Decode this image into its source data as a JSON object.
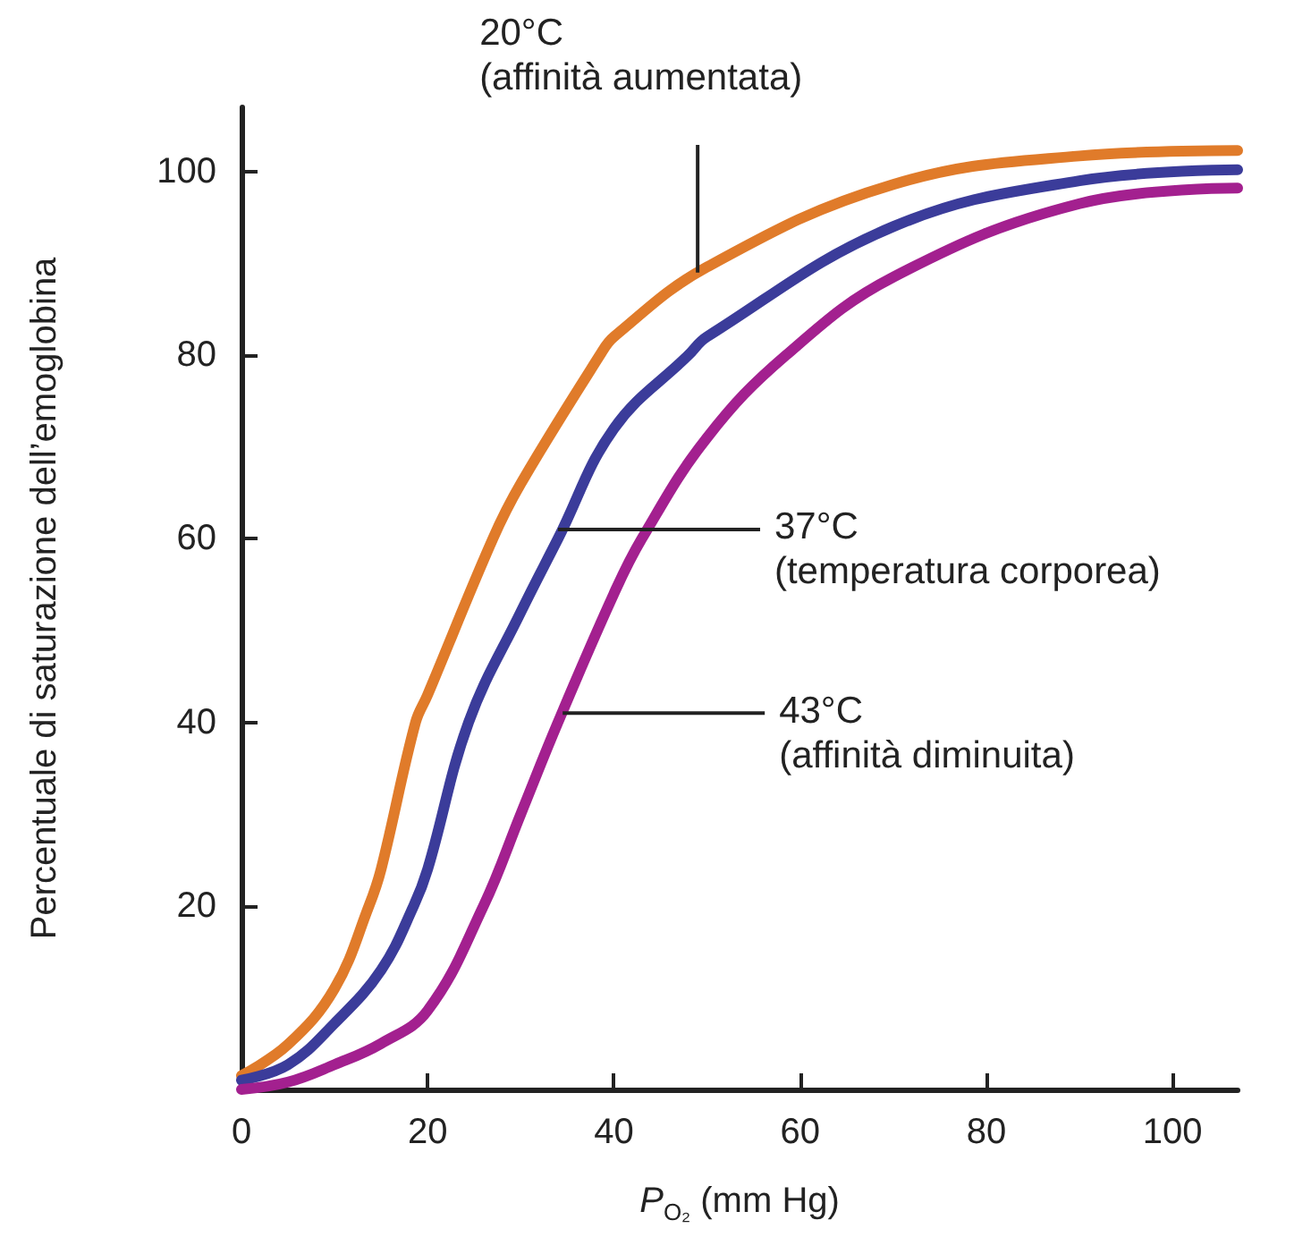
{
  "chart_data": {
    "type": "line",
    "xlabel": "P$_{O₂}$ (mm Hg)",
    "ylabel": "Percentuale di saturazione dell’emoglobina",
    "xlim": [
      0,
      107
    ],
    "xticks": [
      0,
      20,
      40,
      60,
      80,
      100
    ],
    "ylim": [
      0,
      107
    ],
    "yticks": [
      20,
      40,
      60,
      80,
      100
    ],
    "grid": false,
    "legend": false,
    "marker": "none",
    "line_style": "solid",
    "series": [
      {
        "color": "#e07b2a",
        "x": [
          0,
          5,
          10,
          13.7,
          15,
          18.7,
          20,
          27,
          30,
          38.5,
          40,
          50,
          70,
          90,
          107
        ],
        "values": [
          1.5,
          4.9,
          11,
          20,
          24,
          40,
          43,
          60,
          66,
          80,
          82,
          89.6,
          98.6,
          101.7,
          102.3
        ]
      },
      {
        "color": "#3b3c9a",
        "x": [
          0,
          5,
          10,
          15,
          18.5,
          20,
          24.4,
          30,
          34,
          40,
          48,
          50,
          70,
          90,
          107
        ],
        "values": [
          1,
          2.7,
          7.2,
          13,
          20,
          24,
          40,
          52,
          60,
          72,
          80,
          82,
          94,
          99,
          100.2
        ]
      },
      {
        "color": "#a3208f",
        "x": [
          0,
          5,
          10,
          15,
          20,
          26,
          30,
          34,
          40,
          43,
          50,
          58.5,
          70,
          90,
          107
        ],
        "values": [
          0,
          0.8,
          2.7,
          5,
          8.6,
          20,
          30,
          40,
          54,
          60,
          71,
          80,
          88.5,
          96.5,
          98.2
        ]
      }
    ],
    "annotations": [
      {
        "text": "20°C\n(affinità aumentata)",
        "x": 49,
        "y": 89
      },
      {
        "text": "37°C\n(temperatura corporea)",
        "x": 34,
        "y": 61
      },
      {
        "text": "43°C\n(affinità diminuita)",
        "x": 34.5,
        "y": 41
      }
    ]
  }
}
